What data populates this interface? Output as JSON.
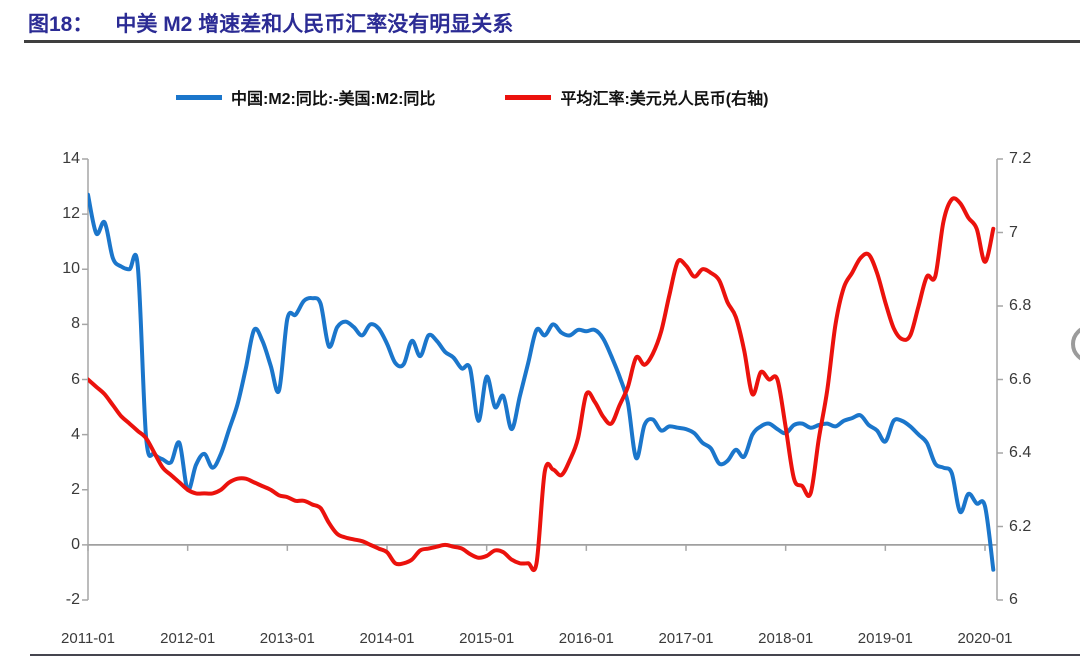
{
  "figure": {
    "label": "图18：",
    "title": "中美 M2 增速差和人民币汇率没有明显关系"
  },
  "legend": [
    {
      "label": "中国:M2:同比:-美国:M2:同比",
      "color": "#1b76cb"
    },
    {
      "label": "平均汇率:美元兑人民币(右轴)",
      "color": "#eb120d"
    }
  ],
  "chart_data": {
    "type": "line",
    "title": "中美 M2 增速差和人民币汇率没有明显关系",
    "x_tick_labels": [
      "2011-01",
      "2012-01",
      "2013-01",
      "2014-01",
      "2015-01",
      "2016-01",
      "2017-01",
      "2018-01",
      "2019-01",
      "2020-01"
    ],
    "x_frequency": "monthly",
    "x_start": "2011-01",
    "y_left": {
      "min": -2,
      "max": 14,
      "tick_labels": [
        "14",
        "12",
        "10",
        "8",
        "6",
        "4",
        "2",
        "0",
        "-2"
      ],
      "tick_values": [
        14,
        12,
        10,
        8,
        6,
        4,
        2,
        0,
        -2
      ]
    },
    "y_right": {
      "min": 6,
      "max": 7.2,
      "tick_labels": [
        "7.2",
        "7",
        "6.8",
        "6.6",
        "6.4",
        "6.2",
        "6"
      ],
      "tick_values": [
        7.2,
        7,
        6.8,
        6.6,
        6.4,
        6.2,
        6
      ]
    },
    "gridlines": {
      "zero_line_left_value": 0
    },
    "legend_position": "top",
    "series": [
      {
        "name": "中国:M2:同比:-美国:M2:同比",
        "axis": "left",
        "color": "#1b76cb",
        "values": [
          12.7,
          11.3,
          11.7,
          10.4,
          10.1,
          10.0,
          10.1,
          3.9,
          3.3,
          3.1,
          3.0,
          3.7,
          2.0,
          2.9,
          3.3,
          2.8,
          3.3,
          4.2,
          5.1,
          6.4,
          7.8,
          7.4,
          6.5,
          5.6,
          8.2,
          8.35,
          8.85,
          8.95,
          8.75,
          7.2,
          7.9,
          8.1,
          7.9,
          7.6,
          8.0,
          7.85,
          7.3,
          6.6,
          6.55,
          7.4,
          6.85,
          7.6,
          7.4,
          7.0,
          6.8,
          6.4,
          6.4,
          4.5,
          6.1,
          5.0,
          5.4,
          4.2,
          5.4,
          6.6,
          7.8,
          7.6,
          8.0,
          7.7,
          7.6,
          7.8,
          7.75,
          7.8,
          7.5,
          6.85,
          6.1,
          5.15,
          3.15,
          4.35,
          4.55,
          4.15,
          4.3,
          4.25,
          4.2,
          4.05,
          3.7,
          3.5,
          2.95,
          3.05,
          3.45,
          3.2,
          4.0,
          4.3,
          4.4,
          4.2,
          4.05,
          4.35,
          4.4,
          4.25,
          4.35,
          4.4,
          4.3,
          4.5,
          4.6,
          4.7,
          4.35,
          4.15,
          3.75,
          4.5,
          4.5,
          4.3,
          4.0,
          3.7,
          2.95,
          2.8,
          2.6,
          1.2,
          1.85,
          1.5,
          1.4,
          -0.9
        ]
      },
      {
        "name": "平均汇率:美元兑人民币(右轴)",
        "axis": "right",
        "color": "#eb120d",
        "values": [
          6.6,
          6.58,
          6.56,
          6.53,
          6.5,
          6.48,
          6.46,
          6.44,
          6.4,
          6.36,
          6.34,
          6.32,
          6.3,
          6.29,
          6.29,
          6.29,
          6.3,
          6.32,
          6.33,
          6.33,
          6.32,
          6.31,
          6.3,
          6.285,
          6.28,
          6.27,
          6.27,
          6.26,
          6.25,
          6.21,
          6.18,
          6.17,
          6.165,
          6.16,
          6.15,
          6.14,
          6.13,
          6.1,
          6.1,
          6.11,
          6.135,
          6.14,
          6.145,
          6.15,
          6.145,
          6.14,
          6.125,
          6.115,
          6.12,
          6.135,
          6.13,
          6.11,
          6.1,
          6.1,
          6.1,
          6.35,
          6.355,
          6.34,
          6.38,
          6.44,
          6.56,
          6.54,
          6.5,
          6.48,
          6.53,
          6.58,
          6.66,
          6.64,
          6.67,
          6.73,
          6.83,
          6.92,
          6.91,
          6.88,
          6.9,
          6.89,
          6.87,
          6.81,
          6.77,
          6.68,
          6.56,
          6.62,
          6.6,
          6.6,
          6.47,
          6.33,
          6.31,
          6.29,
          6.44,
          6.57,
          6.75,
          6.85,
          6.89,
          6.93,
          6.94,
          6.89,
          6.81,
          6.74,
          6.71,
          6.72,
          6.8,
          6.88,
          6.88,
          7.03,
          7.09,
          7.08,
          7.04,
          7.01,
          6.92,
          7.01
        ]
      }
    ],
    "colors": {
      "axis": "#a6a6a6",
      "zero_line": "#a0a0a0",
      "tick_text": "#3a3a3a",
      "title": "#2b2b94"
    }
  }
}
